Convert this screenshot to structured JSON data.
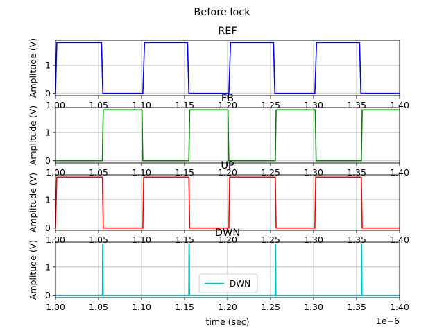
{
  "suptitle": "Before lock",
  "xlabel": "time (sec)",
  "x_offset_label": "1e−6",
  "chart_data": [
    {
      "type": "line",
      "title": "REF",
      "ylabel": "Amplitude (V)",
      "color": "#0000ff",
      "xlim": [
        1.0,
        1.4
      ],
      "ylim": [
        -0.08,
        1.88
      ],
      "yticks": [
        0,
        1
      ],
      "ytick_labels": [
        "0",
        "1"
      ],
      "xticks": [
        1.0,
        1.05,
        1.1,
        1.15,
        1.2,
        1.25,
        1.3,
        1.35,
        1.4
      ],
      "xtick_labels": [
        "1.00",
        "1.05",
        "1.10",
        "1.15",
        "1.20",
        "1.25",
        "1.30",
        "1.35",
        "1.40"
      ],
      "grid": true,
      "x": [
        1.0,
        1.0015,
        1.0535,
        1.055,
        1.1015,
        1.1035,
        1.1535,
        1.155,
        1.2015,
        1.2035,
        1.2535,
        1.255,
        1.3015,
        1.3035,
        1.3535,
        1.355,
        1.4
      ],
      "y": [
        0,
        1.8,
        1.8,
        0,
        0,
        1.8,
        1.8,
        0,
        0,
        1.8,
        1.8,
        0,
        0,
        1.8,
        1.8,
        0,
        0
      ]
    },
    {
      "type": "line",
      "title": "FB",
      "ylabel": "Amplitude (V)",
      "color": "#008000",
      "xlim": [
        1.0,
        1.4
      ],
      "ylim": [
        -0.08,
        1.88
      ],
      "yticks": [
        0,
        1
      ],
      "ytick_labels": [
        "0",
        "1"
      ],
      "xticks": [
        1.0,
        1.05,
        1.1,
        1.15,
        1.2,
        1.25,
        1.3,
        1.35,
        1.4
      ],
      "xtick_labels": [
        "1.00",
        "1.05",
        "1.10",
        "1.15",
        "1.20",
        "1.25",
        "1.30",
        "1.35",
        "1.40"
      ],
      "grid": true,
      "x": [
        1.0,
        1.0545,
        1.0555,
        1.1005,
        1.1015,
        1.155,
        1.156,
        1.2005,
        1.2015,
        1.2555,
        1.2565,
        1.302,
        1.303,
        1.3555,
        1.3565,
        1.4
      ],
      "y": [
        0,
        0,
        1.8,
        1.8,
        0,
        0,
        1.8,
        1.8,
        0,
        0,
        1.8,
        1.8,
        0,
        0,
        1.8,
        1.8
      ]
    },
    {
      "type": "line",
      "title": "UP",
      "ylabel": "Amplitude (V)",
      "color": "#ff0000",
      "xlim": [
        1.0,
        1.4
      ],
      "ylim": [
        -0.08,
        1.88
      ],
      "yticks": [
        0,
        1
      ],
      "ytick_labels": [
        "0",
        "1"
      ],
      "xticks": [
        1.0,
        1.05,
        1.1,
        1.15,
        1.2,
        1.25,
        1.3,
        1.35,
        1.4
      ],
      "xtick_labels": [
        "1.00",
        "1.05",
        "1.10",
        "1.15",
        "1.20",
        "1.25",
        "1.30",
        "1.35",
        "1.40"
      ],
      "grid": true,
      "x": [
        1.0,
        1.0015,
        1.0545,
        1.0555,
        1.1015,
        1.1025,
        1.155,
        1.156,
        1.2015,
        1.2025,
        1.2555,
        1.2565,
        1.3015,
        1.3025,
        1.3555,
        1.3565,
        1.4
      ],
      "y": [
        0,
        1.8,
        1.8,
        0,
        0,
        1.8,
        1.8,
        0,
        0,
        1.8,
        1.8,
        0,
        0,
        1.8,
        1.8,
        0,
        0
      ]
    },
    {
      "type": "line",
      "title": "DWN",
      "ylabel": "Amplitude (V)",
      "color": "#00bfbf",
      "xlim": [
        1.0,
        1.4
      ],
      "ylim": [
        -0.08,
        1.88
      ],
      "yticks": [
        0,
        1
      ],
      "ytick_labels": [
        "0",
        "1"
      ],
      "xticks": [
        1.0,
        1.05,
        1.1,
        1.15,
        1.2,
        1.25,
        1.3,
        1.35,
        1.4
      ],
      "xtick_labels": [
        "1.00",
        "1.05",
        "1.10",
        "1.15",
        "1.20",
        "1.25",
        "1.30",
        "1.35",
        "1.40"
      ],
      "grid": true,
      "legend": "DWN",
      "legend_loc": "lower center",
      "x": [
        1.0,
        1.0545,
        1.0548,
        1.0551,
        1.0554,
        1.1549,
        1.1552,
        1.1555,
        1.1558,
        1.2554,
        1.2557,
        1.256,
        1.2563,
        1.3554,
        1.3557,
        1.356,
        1.3563,
        1.4
      ],
      "y": [
        0,
        0,
        1.8,
        1.8,
        0,
        0,
        1.8,
        1.8,
        0,
        0,
        1.8,
        1.8,
        0,
        0,
        1.8,
        1.8,
        0,
        0
      ]
    }
  ]
}
